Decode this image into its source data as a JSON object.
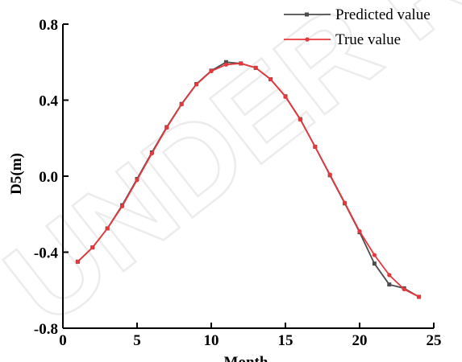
{
  "watermark": "UNDER REVIEW",
  "chart_data": {
    "type": "line",
    "title": "",
    "xlabel": "Month",
    "ylabel": "D5(m)",
    "xlim": [
      0,
      25
    ],
    "ylim": [
      -0.8,
      0.8
    ],
    "xticks": [
      "0",
      "5",
      "10",
      "15",
      "20",
      "25"
    ],
    "yticks": [
      "-0.8",
      "-0.4",
      "0.0",
      "0.4",
      "0.8"
    ],
    "legend_position": "top-right",
    "series": [
      {
        "name": "Predicted value",
        "color": "#4d4d4d",
        "marker": "square",
        "x": [
          1,
          2,
          3,
          4,
          5,
          6,
          7,
          8,
          9,
          10,
          11,
          12,
          13,
          14,
          15,
          16,
          17,
          18,
          19,
          20,
          21,
          22,
          23,
          24
        ],
        "y": [
          -0.45,
          -0.375,
          -0.275,
          -0.153,
          -0.015,
          0.125,
          0.258,
          0.38,
          0.485,
          0.555,
          0.6,
          0.593,
          0.57,
          0.51,
          0.42,
          0.3,
          0.155,
          0.005,
          -0.143,
          -0.295,
          -0.46,
          -0.57,
          -0.59,
          -0.635
        ]
      },
      {
        "name": "True value",
        "color": "#e8373c",
        "marker": "circle",
        "x": [
          1,
          2,
          3,
          4,
          5,
          6,
          7,
          8,
          9,
          10,
          11,
          12,
          13,
          14,
          15,
          16,
          17,
          18,
          19,
          20,
          21,
          22,
          23,
          24
        ],
        "y": [
          -0.45,
          -0.375,
          -0.275,
          -0.158,
          -0.02,
          0.12,
          0.255,
          0.378,
          0.483,
          0.553,
          0.587,
          0.593,
          0.57,
          0.51,
          0.418,
          0.298,
          0.155,
          0.008,
          -0.14,
          -0.29,
          -0.415,
          -0.52,
          -0.595,
          -0.635
        ]
      }
    ]
  }
}
